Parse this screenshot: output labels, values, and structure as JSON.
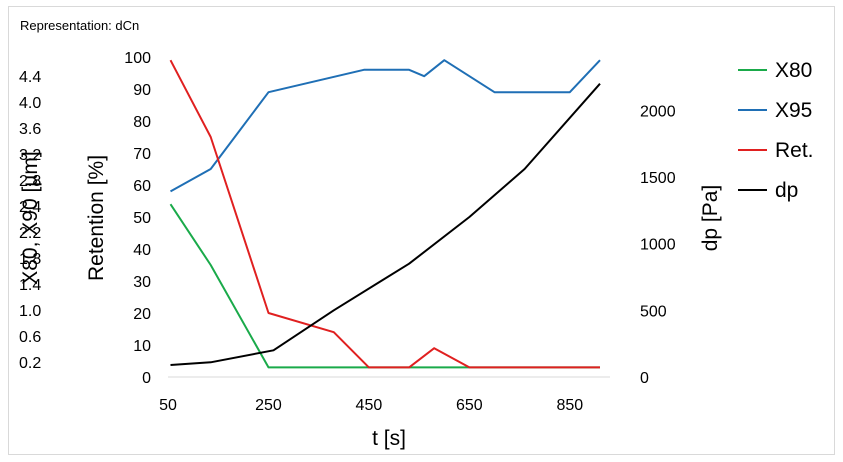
{
  "chart_data": {
    "type": "line",
    "representation": "Representation: dCn",
    "xlabel": "t [s]",
    "xlim": [
      50,
      930
    ],
    "xticks": [
      "50",
      "250",
      "450",
      "650",
      "850"
    ],
    "y_left_outer": {
      "label": "X80, X90 [µm]",
      "ticks": [
        "0.2",
        "0.6",
        "1.0",
        "1.4",
        "1.8",
        "2.2",
        "2.4",
        "2.8",
        "3.2",
        "3.6",
        "4.0",
        "4.4"
      ]
    },
    "y_left": {
      "label": "Retention [%]",
      "ylim": [
        0,
        100
      ],
      "ticks": [
        "0",
        "10",
        "20",
        "30",
        "40",
        "50",
        "60",
        "70",
        "80",
        "90",
        "100"
      ]
    },
    "y_right": {
      "label": "dp [Pa]",
      "ylim": [
        0,
        2400
      ],
      "ticks": [
        "0",
        "500",
        "1000",
        "1500",
        "2000"
      ]
    },
    "legend_position": "right",
    "series": [
      {
        "name": "X80",
        "color": "#1aaa4a",
        "axis": "left",
        "x": [
          55,
          135,
          250,
          450,
          650,
          910
        ],
        "y": [
          54,
          35,
          3,
          3,
          3,
          3
        ]
      },
      {
        "name": "X95",
        "color": "#1f6fb5",
        "axis": "left",
        "x": [
          55,
          135,
          250,
          440,
          530,
          560,
          600,
          700,
          850,
          910
        ],
        "y": [
          58,
          65,
          89,
          96,
          96,
          94,
          99,
          89,
          89,
          99
        ]
      },
      {
        "name": "Ret.",
        "color": "#e02020",
        "axis": "left",
        "x": [
          55,
          135,
          250,
          380,
          450,
          530,
          580,
          650,
          910
        ],
        "y": [
          99,
          75,
          20,
          14,
          3,
          3,
          9,
          3,
          3
        ]
      },
      {
        "name": "dp",
        "color": "#000000",
        "axis": "right",
        "x": [
          55,
          135,
          260,
          380,
          530,
          650,
          760,
          910
        ],
        "y": [
          90,
          110,
          200,
          500,
          850,
          1200,
          1560,
          2200
        ]
      }
    ]
  }
}
